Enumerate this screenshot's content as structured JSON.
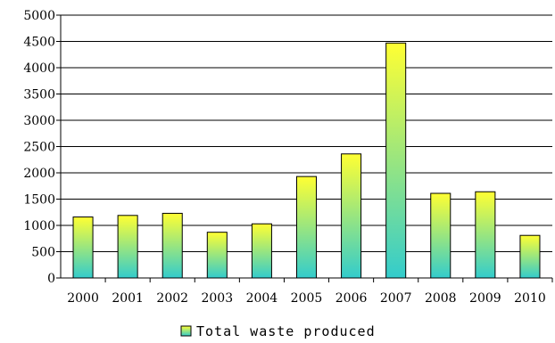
{
  "chart_data": {
    "type": "bar",
    "title": "",
    "xlabel": "",
    "ylabel": "",
    "categories": [
      "2000",
      "2001",
      "2002",
      "2003",
      "2004",
      "2005",
      "2006",
      "2007",
      "2008",
      "2009",
      "2010"
    ],
    "series": [
      {
        "name": "Total waste produced",
        "values": [
          1160,
          1190,
          1230,
          870,
          1030,
          1930,
          2360,
          4470,
          1610,
          1640,
          810
        ]
      }
    ],
    "ylim": [
      0,
      5000
    ],
    "yticks": [
      0,
      500,
      1000,
      1500,
      2000,
      2500,
      3000,
      3500,
      4000,
      4500,
      5000
    ],
    "grid": true,
    "legend_position": "bottom",
    "colors": {
      "bar_top": "#ffff33",
      "bar_bottom": "#33cccc",
      "bar_stroke": "#000000",
      "grid": "#000000"
    }
  }
}
